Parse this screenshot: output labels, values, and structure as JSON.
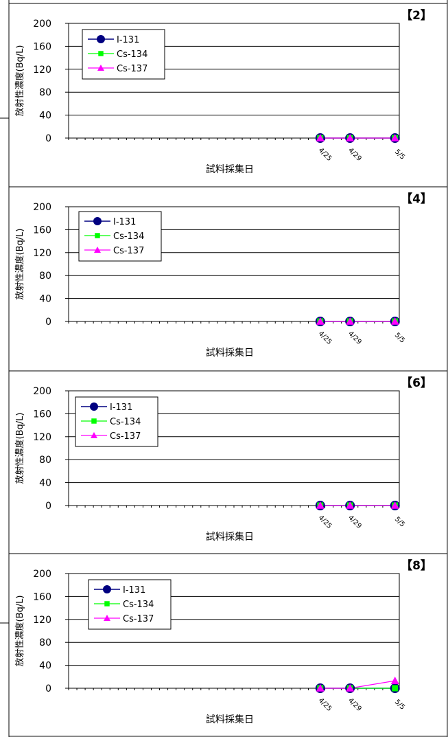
{
  "colors": {
    "border": "#000000",
    "gridline": "#000000",
    "series_i131": "#000080",
    "series_cs134": "#00ff00",
    "series_cs137": "#ff00ff"
  },
  "chart_data": [
    {
      "type": "line",
      "panel_label": "【2】",
      "ylabel": "放射性濃度(Bq/L)",
      "xlabel": "試料採集日",
      "ylim": [
        0,
        200
      ],
      "yticks": [
        "200",
        "160",
        "120",
        "80",
        "40",
        "0"
      ],
      "grid": true,
      "legend_position": "top-left",
      "x": [
        "4/25",
        "4/29",
        "5/5"
      ],
      "series": [
        {
          "name": "I-131",
          "marker": "circle",
          "values": [
            0,
            0,
            0
          ]
        },
        {
          "name": "Cs-134",
          "marker": "square",
          "values": [
            0,
            0,
            0
          ]
        },
        {
          "name": "Cs-137",
          "marker": "triangle",
          "values": [
            0,
            0,
            0
          ]
        }
      ]
    },
    {
      "type": "line",
      "panel_label": "【4】",
      "ylabel": "放射性濃度(Bq/L)",
      "xlabel": "試料採集日",
      "ylim": [
        0,
        200
      ],
      "yticks": [
        "200",
        "160",
        "120",
        "80",
        "40",
        "0"
      ],
      "grid": true,
      "legend_position": "top-left",
      "x": [
        "4/25",
        "4/29",
        "5/5"
      ],
      "series": [
        {
          "name": "I-131",
          "marker": "circle",
          "values": [
            0,
            0,
            0
          ]
        },
        {
          "name": "Cs-134",
          "marker": "square",
          "values": [
            0,
            0,
            0
          ]
        },
        {
          "name": "Cs-137",
          "marker": "triangle",
          "values": [
            0,
            0,
            0
          ]
        }
      ]
    },
    {
      "type": "line",
      "panel_label": "【6】",
      "ylabel": "放射性濃度(Bq/L)",
      "xlabel": "試料採集日",
      "ylim": [
        0,
        200
      ],
      "yticks": [
        "200",
        "160",
        "120",
        "80",
        "40",
        "0"
      ],
      "grid": true,
      "legend_position": "top-left",
      "x": [
        "4/25",
        "4/29",
        "5/5"
      ],
      "series": [
        {
          "name": "I-131",
          "marker": "circle",
          "values": [
            0,
            0,
            0
          ]
        },
        {
          "name": "Cs-134",
          "marker": "square",
          "values": [
            0,
            0,
            0
          ]
        },
        {
          "name": "Cs-137",
          "marker": "triangle",
          "values": [
            0,
            0,
            0
          ]
        }
      ]
    },
    {
      "type": "line",
      "panel_label": "【8】",
      "ylabel": "放射性濃度(Bq/L)",
      "xlabel": "試料採集日",
      "ylim": [
        0,
        200
      ],
      "yticks": [
        "200",
        "160",
        "120",
        "80",
        "40",
        "0"
      ],
      "grid": true,
      "legend_position": "top-left",
      "x": [
        "4/25",
        "4/29",
        "5/5"
      ],
      "series": [
        {
          "name": "I-131",
          "marker": "circle",
          "values": [
            0,
            0,
            0
          ]
        },
        {
          "name": "Cs-134",
          "marker": "square",
          "values": [
            0,
            0,
            0
          ]
        },
        {
          "name": "Cs-137",
          "marker": "triangle",
          "values": [
            0,
            0,
            13
          ]
        }
      ]
    }
  ]
}
